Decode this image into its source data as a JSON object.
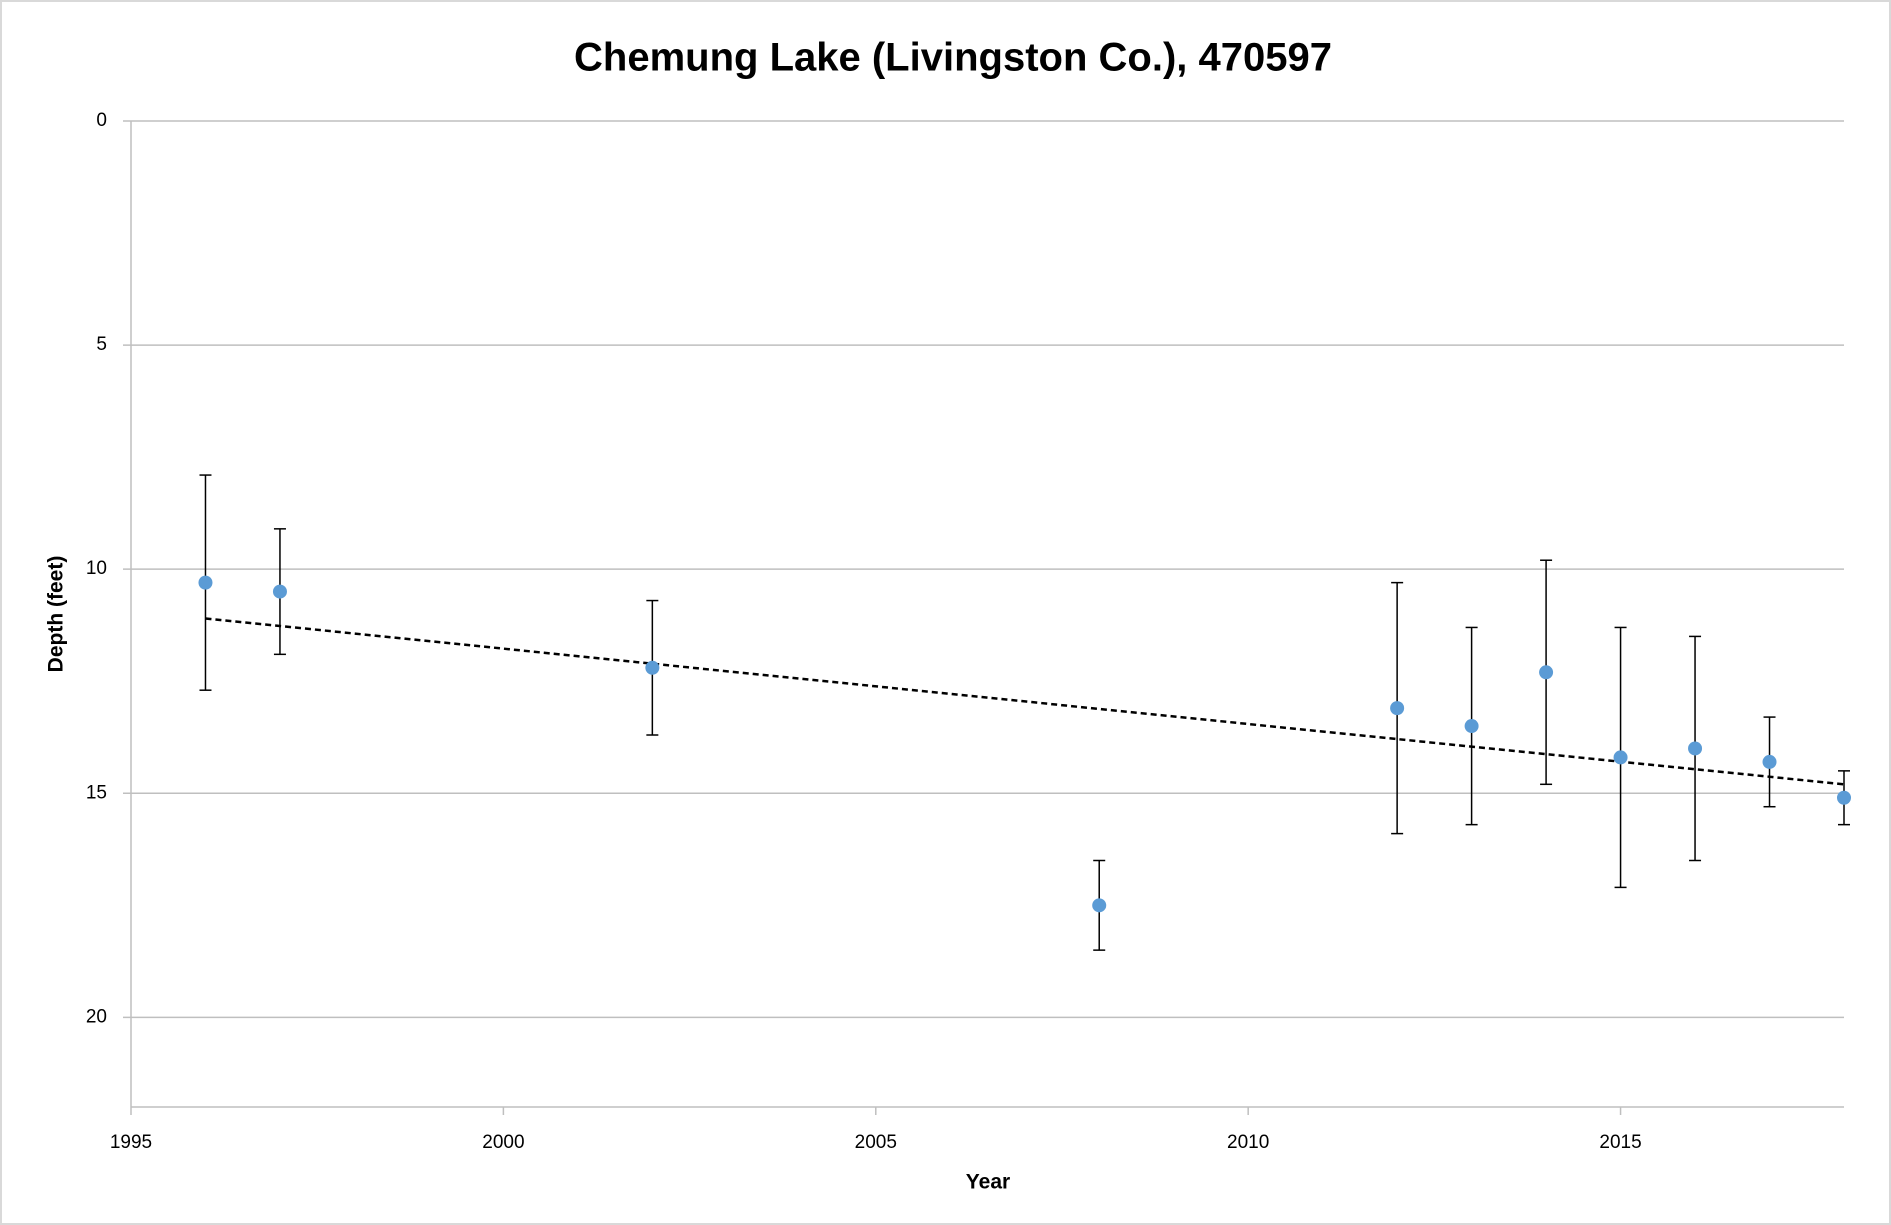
{
  "chart_data": {
    "type": "scatter",
    "title": "Chemung Lake (Livingston Co.), 470597",
    "x_label": "Year",
    "y_label": "Depth (feet)",
    "xlim": [
      1995,
      2018
    ],
    "xticks": [
      1995,
      2000,
      2005,
      2010,
      2015
    ],
    "ylim": [
      0,
      22
    ],
    "yticks": [
      0,
      5,
      10,
      15,
      20
    ],
    "y_inverted": true,
    "grid": true,
    "series": [
      {
        "color": "#5b9bd5",
        "x": [
          1996,
          1997,
          2002,
          2008,
          2012,
          2013,
          2014,
          2015,
          2016,
          2017,
          2018
        ],
        "values": [
          10.3,
          10.5,
          12.2,
          17.5,
          13.1,
          13.5,
          12.3,
          14.2,
          14.0,
          14.3,
          15.1
        ],
        "errors": [
          2.4,
          1.4,
          1.5,
          1.0,
          2.8,
          2.2,
          2.5,
          2.9,
          2.5,
          1.0,
          0.6
        ]
      }
    ],
    "trendline": {
      "x": [
        1996,
        2018
      ],
      "values": [
        11.1,
        14.8
      ],
      "color": "#000000"
    }
  }
}
